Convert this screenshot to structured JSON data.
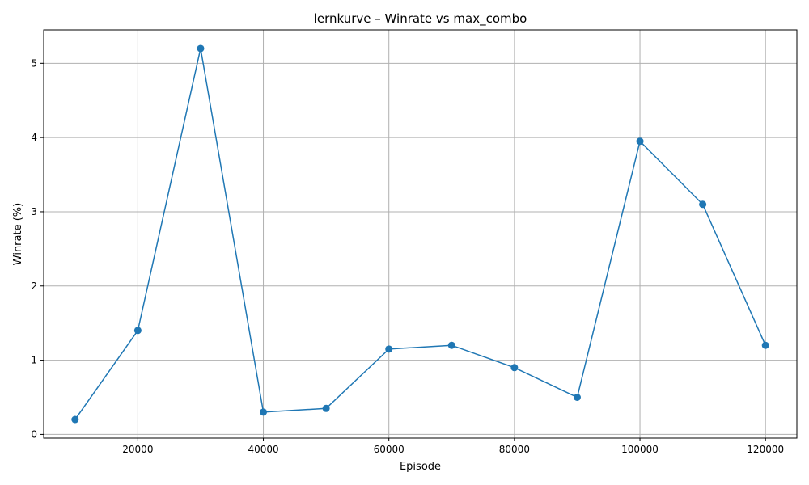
{
  "chart_data": {
    "type": "line",
    "title": "lernkurve – Winrate vs max_combo",
    "xlabel": "Episode",
    "ylabel": "Winrate (%)",
    "xlim": [
      5000,
      125000
    ],
    "ylim": [
      -0.05,
      5.45
    ],
    "xticks": [
      20000,
      40000,
      60000,
      80000,
      100000,
      120000
    ],
    "yticks": [
      0,
      1,
      2,
      3,
      4,
      5
    ],
    "grid": true,
    "series": [
      {
        "color": "#1f77b4",
        "marker": "circle",
        "x": [
          10000,
          20000,
          30000,
          40000,
          50000,
          60000,
          70000,
          80000,
          90000,
          100000,
          110000,
          120000
        ],
        "y": [
          0.2,
          1.4,
          5.2,
          0.3,
          0.35,
          1.15,
          1.2,
          0.9,
          0.5,
          3.95,
          3.1,
          1.2
        ]
      }
    ]
  }
}
